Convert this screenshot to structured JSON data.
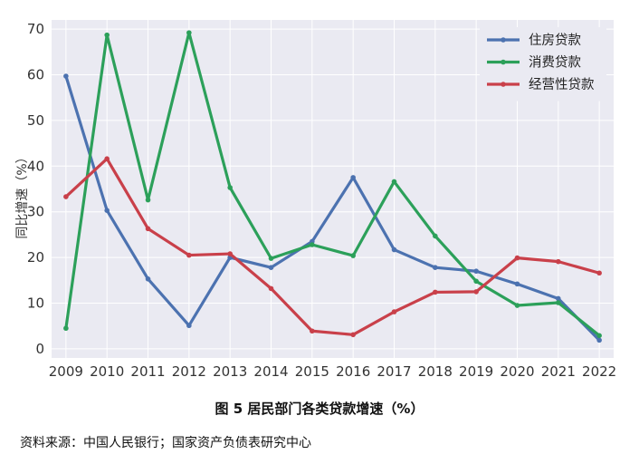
{
  "chart_data": {
    "type": "line",
    "ylabel": "同比增速（%）",
    "x": [
      2009,
      2010,
      2011,
      2012,
      2013,
      2014,
      2015,
      2016,
      2017,
      2018,
      2019,
      2020,
      2021,
      2022
    ],
    "ylim": [
      -2,
      72
    ],
    "yticks": [
      0,
      10,
      20,
      30,
      40,
      50,
      60,
      70
    ],
    "grid": true,
    "legend_position": "top-right",
    "series": [
      {
        "name": "住房贷款",
        "color": "#4c72b0",
        "values": [
          59.7,
          30.3,
          15.3,
          5.1,
          20.0,
          17.8,
          23.5,
          37.5,
          21.7,
          17.8,
          17.0,
          14.2,
          11.0,
          1.9
        ]
      },
      {
        "name": "消费贷款",
        "color": "#2ca05a",
        "values": [
          4.5,
          68.7,
          32.6,
          69.2,
          35.3,
          19.8,
          22.8,
          20.4,
          36.6,
          24.7,
          14.8,
          9.5,
          10.1,
          2.9
        ]
      },
      {
        "name": "经营性贷款",
        "color": "#c9404a",
        "values": [
          33.3,
          41.6,
          26.3,
          20.5,
          20.8,
          13.2,
          3.9,
          3.1,
          8.1,
          12.4,
          12.5,
          19.9,
          19.1,
          16.6
        ]
      }
    ]
  },
  "caption": "图 5 居民部门各类贷款增速（%）",
  "source": "资料来源：中国人民银行；国家资产负债表研究中心"
}
